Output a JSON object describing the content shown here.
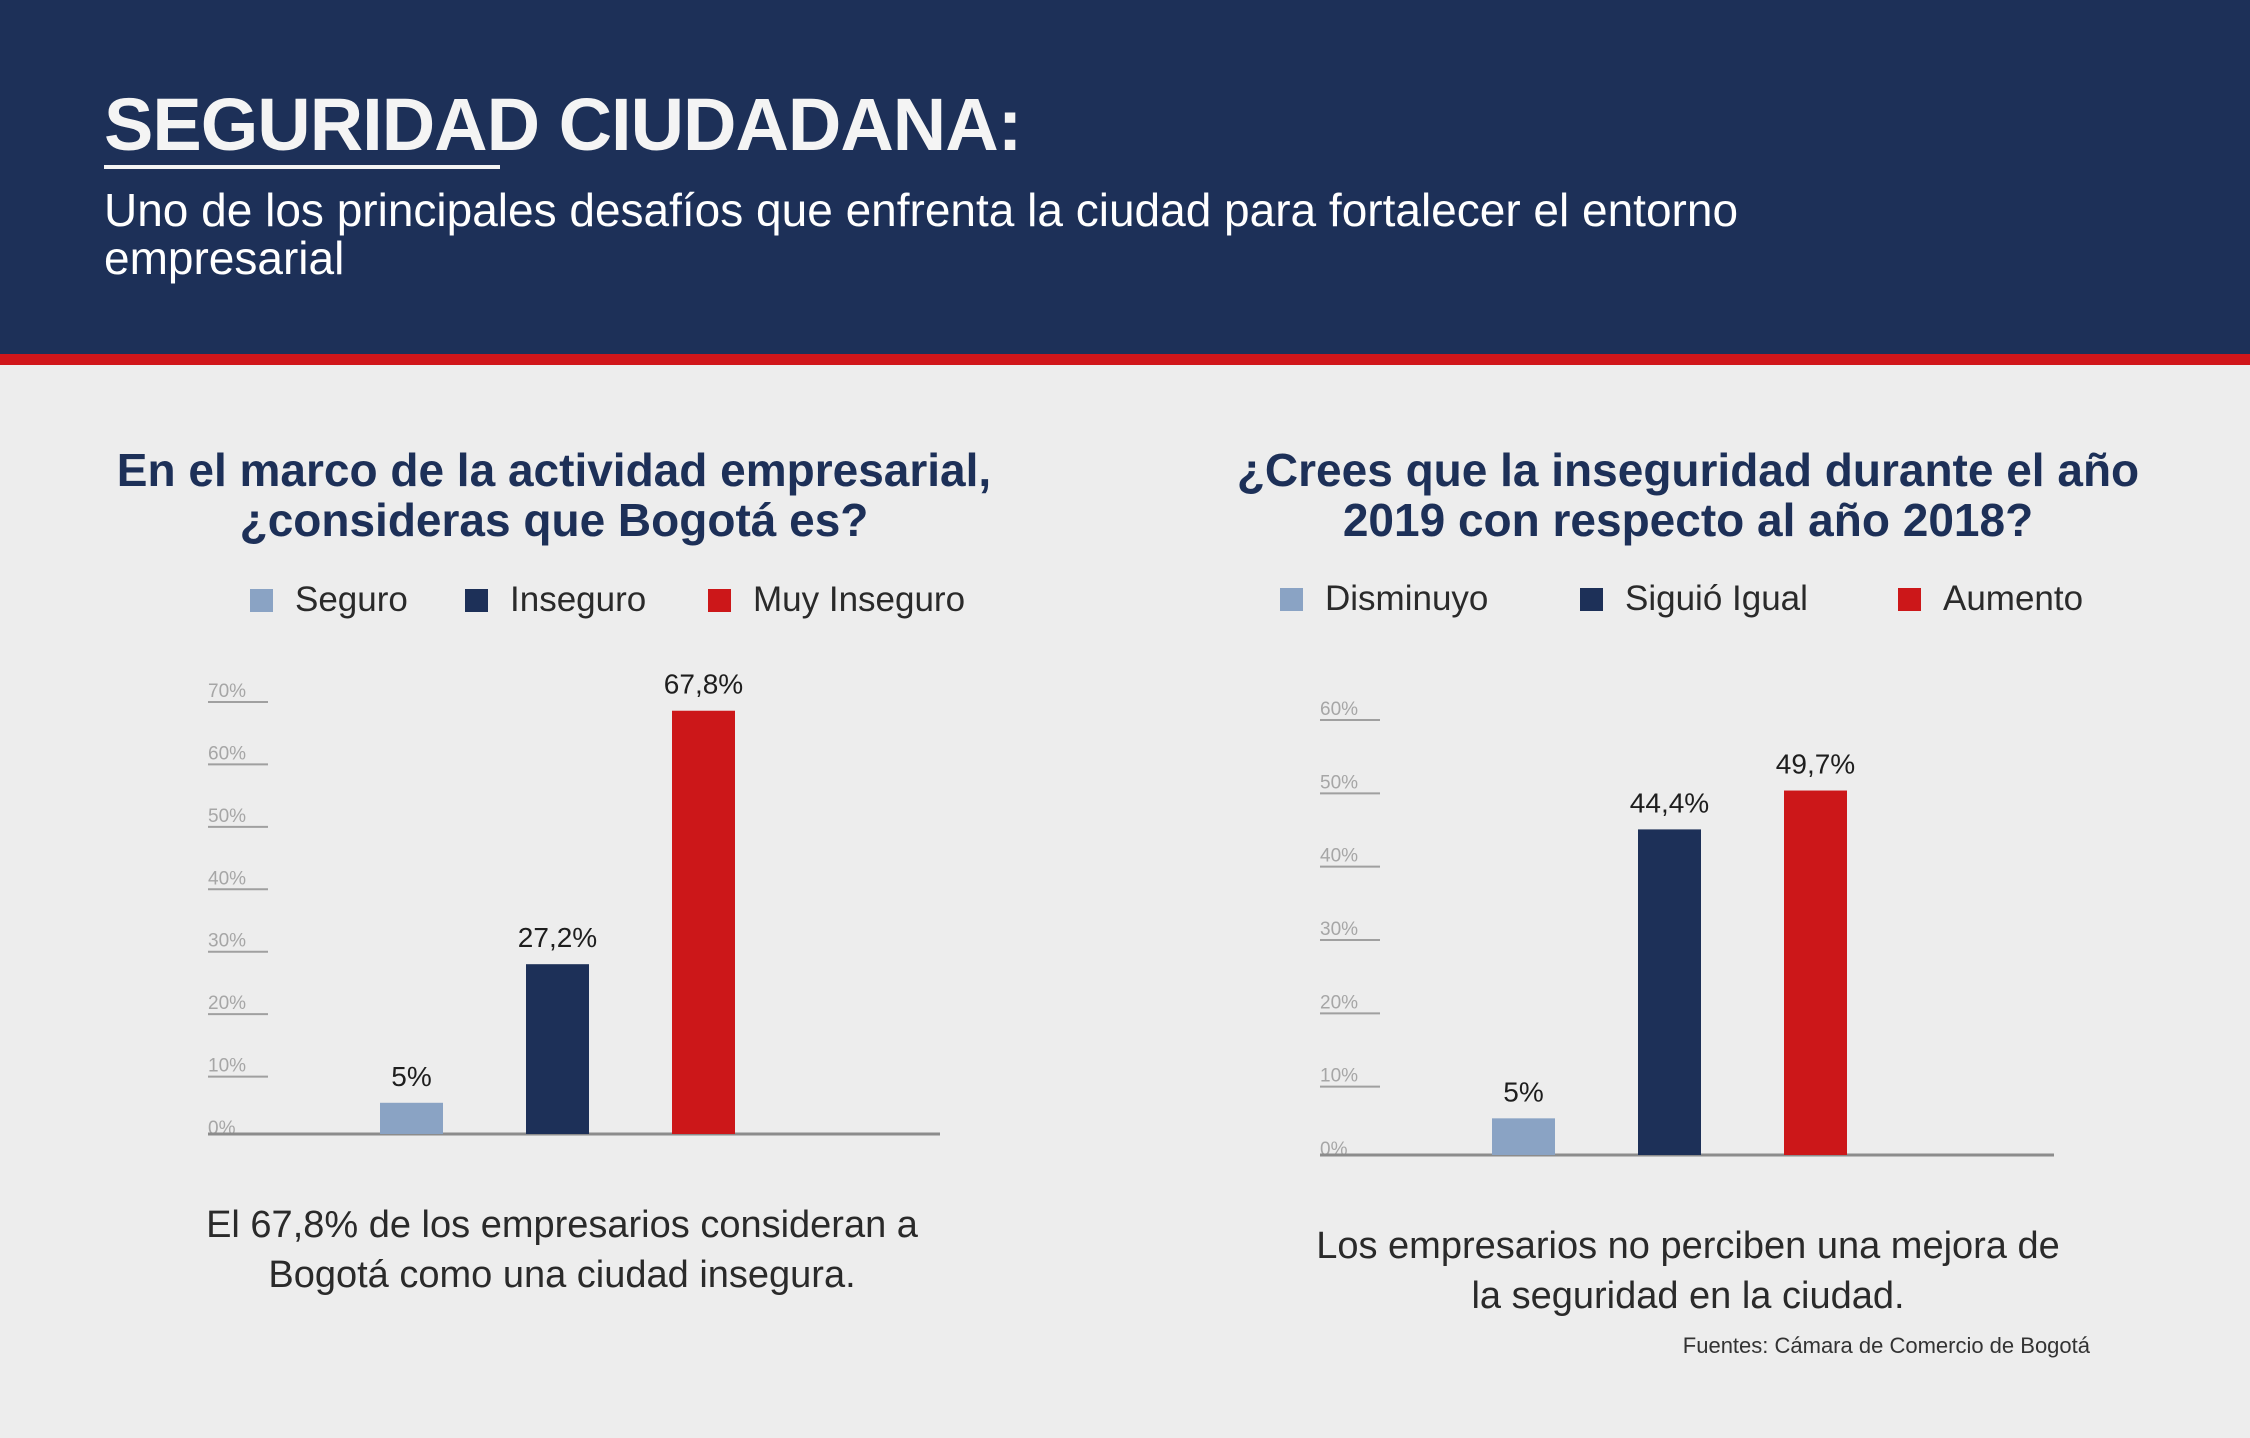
{
  "header": {
    "title_part1": "SEGURIDAD",
    "title_part2": "CIUDADANA:",
    "subtitle": "Uno de los principales desafíos que enfrenta la ciudad para fortalecer el entorno empresarial"
  },
  "colors": {
    "navy": "#1d3058",
    "light_blue": "#8aa3c4",
    "red": "#cc1719",
    "background": "#ededed"
  },
  "chart_data": [
    {
      "type": "bar",
      "title": "En el marco de la actividad empresarial, ¿consideras que Bogotá es?",
      "title_line1": "En el marco de la actividad empresarial,",
      "title_line2": "¿consideras que Bogotá es?",
      "categories": [
        "Seguro",
        "Inseguro",
        "Muy Inseguro"
      ],
      "values": [
        5,
        27.2,
        67.8
      ],
      "labels": [
        "5%",
        "27,2%",
        "67,8%"
      ],
      "colors": [
        "#8aa3c4",
        "#1d3058",
        "#cc1719"
      ],
      "legend": [
        "Seguro",
        "Inseguro",
        "Muy Inseguro"
      ],
      "yticks": [
        "0%",
        "10%",
        "20%",
        "30%",
        "40%",
        "50%",
        "60%",
        "70%"
      ],
      "ylim": [
        0,
        70
      ],
      "caption_line1": "El 67,8% de los empresarios consideran a",
      "caption_line2": "Bogotá como una ciudad insegura."
    },
    {
      "type": "bar",
      "title": "¿Crees que la inseguridad durante el año 2019 con respecto al año 2018?",
      "title_line1": "¿Crees que la inseguridad durante el año",
      "title_line2": "2019 con respecto al año 2018?",
      "categories": [
        "Disminuyo",
        "Siguió Igual",
        "Aumento"
      ],
      "values": [
        5,
        44.4,
        49.7
      ],
      "labels": [
        "5%",
        "44,4%",
        "49,7%"
      ],
      "colors": [
        "#8aa3c4",
        "#1d3058",
        "#cc1719"
      ],
      "legend": [
        "Disminuyo",
        "Siguió Igual",
        "Aumento"
      ],
      "yticks": [
        "0%",
        "10%",
        "20%",
        "30%",
        "40%",
        "50%",
        "60%"
      ],
      "ylim": [
        0,
        60
      ],
      "caption_line1": "Los empresarios no perciben una mejora de",
      "caption_line2": "la seguridad en la ciudad."
    }
  ],
  "footer": {
    "source": "Fuentes: Cámara de Comercio de Bogotá"
  }
}
